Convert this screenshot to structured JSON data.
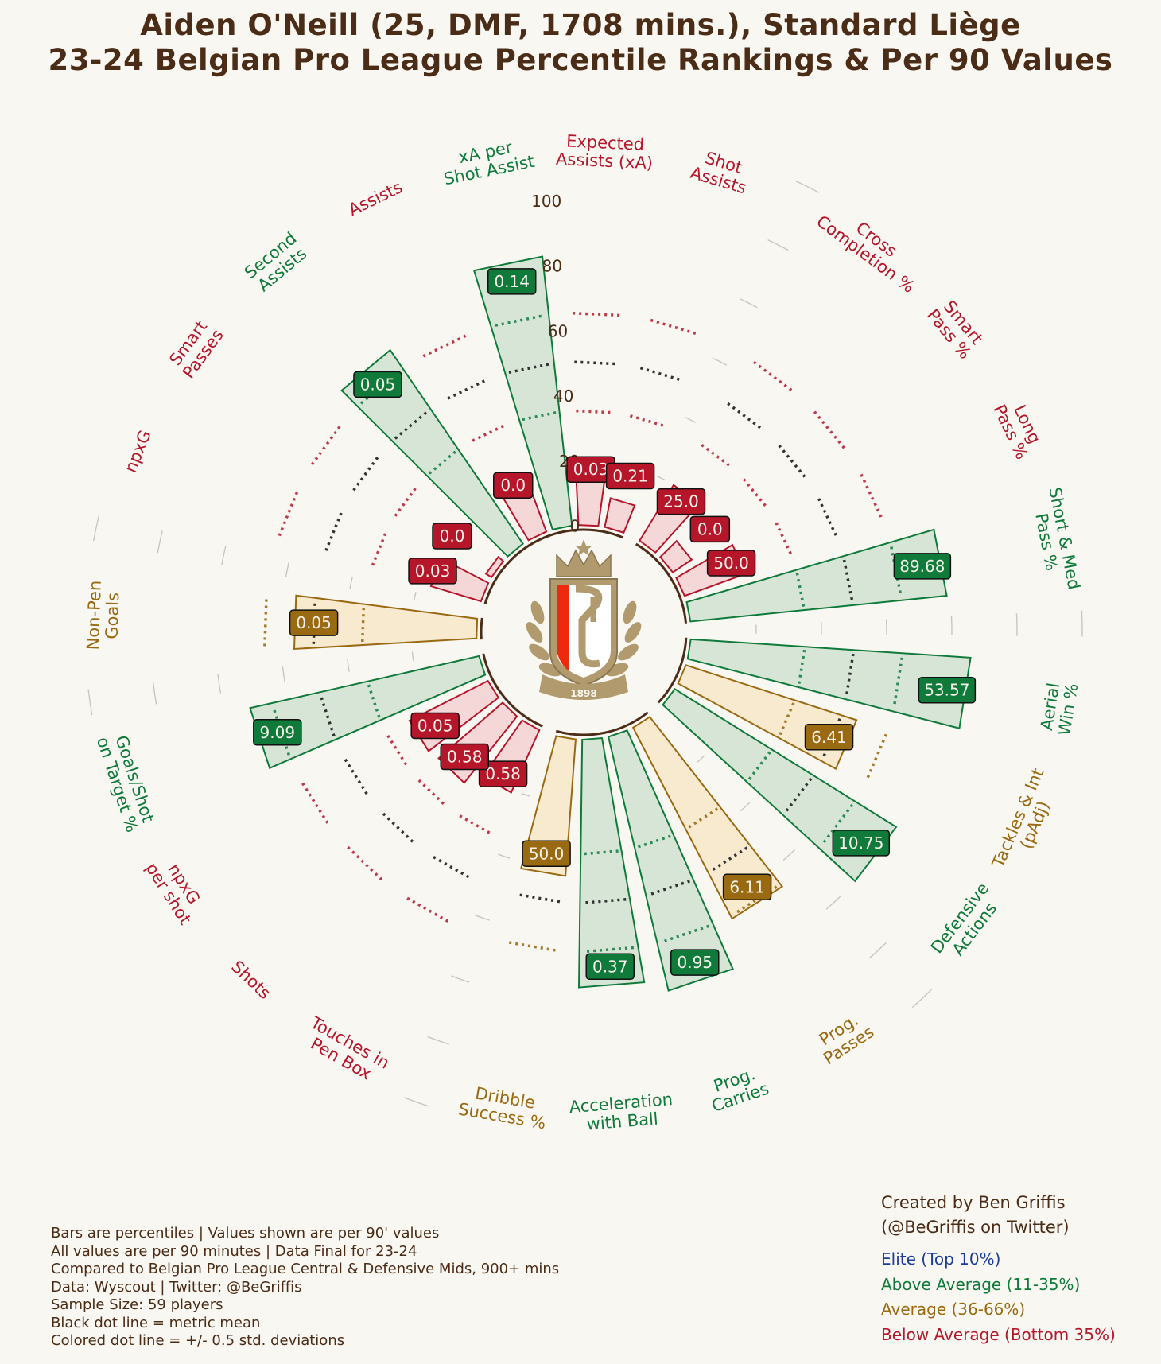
{
  "title": "Aiden O'Neill (25, DMF, 1708 mins.), Standard Liège",
  "subtitle": "23-24 Belgian Pro League Percentile Rankings & Per 90 Values",
  "notes": [
    "Bars are percentiles | Values shown are per 90' values",
    "All values are per 90 minutes | Data Final for 23-24",
    "Compared to Belgian Pro League Central & Defensive Mids, 900+ mins",
    "Data: Wyscout | Twitter: @BeGriffis",
    "Sample Size: 59 players",
    "Black dot line = metric mean",
    "Colored dot line = +/- 0.5 std. deviations"
  ],
  "credit": [
    "Created by Ben Griffis",
    "(@BeGriffis on Twitter)"
  ],
  "legend": [
    {
      "label": "Elite (Top 10%)",
      "color": "#1a3d99"
    },
    {
      "label": "Above Average (11-35%)",
      "color": "#0f7a3a"
    },
    {
      "label": "Average (36-66%)",
      "color": "#9a6a12"
    },
    {
      "label": "Below Average (Bottom 35%)",
      "color": "#b5162a"
    }
  ],
  "colors": {
    "above": "#0f7a3a",
    "average": "#9a6a12",
    "below": "#b5162a",
    "text": "#4a2c17",
    "bg": "#f9f7f2"
  },
  "logo": {
    "name": "standard-liege-crest-icon",
    "year": "1898"
  },
  "chart_data": {
    "type": "radar-bar",
    "ylim": [
      0,
      100
    ],
    "radial_ticks": [
      "0",
      "20",
      "40",
      "60",
      "80",
      "100"
    ],
    "metrics": [
      {
        "label": "Aerial\nWin %",
        "percentile": 86,
        "value": "53.57",
        "tier": "above"
      },
      {
        "label": "Tackles & Int\n(pAdj)",
        "percentile": 55,
        "value": "6.41",
        "tier": "average"
      },
      {
        "label": "Defensive\nActions",
        "percentile": 80,
        "value": "10.75",
        "tier": "above"
      },
      {
        "label": "Prog.\nPasses",
        "percentile": 66,
        "value": "6.11",
        "tier": "average"
      },
      {
        "label": "Prog.\nCarries",
        "percentile": 80,
        "value": "0.95",
        "tier": "above"
      },
      {
        "label": "Acceleration\nwith Ball",
        "percentile": 76,
        "value": "0.37",
        "tier": "above"
      },
      {
        "label": "Dribble\nSuccess %",
        "percentile": 42,
        "value": "50.0",
        "tier": "average"
      },
      {
        "label": "Touches in\nPen Box",
        "percentile": 21,
        "value": "0.58",
        "tier": "below"
      },
      {
        "label": "Shots",
        "percentile": 26,
        "value": "0.58",
        "tier": "below"
      },
      {
        "label": "npxG\nper shot",
        "percentile": 27,
        "value": "0.05",
        "tier": "below"
      },
      {
        "label": "Goals/Shot\non Target %",
        "percentile": 72,
        "value": "9.09",
        "tier": "above"
      },
      {
        "label": "Non-Pen\nGoals",
        "percentile": 56,
        "value": "0.05",
        "tier": "average"
      },
      {
        "label": "npxG",
        "percentile": 16,
        "value": "0.03",
        "tier": "below"
      },
      {
        "label": "Smart\nPasses",
        "percentile": 2,
        "value": "0.0",
        "tier": "below"
      },
      {
        "label": "Second\nAssists",
        "percentile": 72,
        "value": "0.05",
        "tier": "above"
      },
      {
        "label": "Assists",
        "percentile": 15,
        "value": "0.0",
        "tier": "below"
      },
      {
        "label": "xA per\nShot Assist",
        "percentile": 83,
        "value": "0.14",
        "tier": "above"
      },
      {
        "label": "Expected\nAssists (xA)",
        "percentile": 17,
        "value": "0.03",
        "tier": "below"
      },
      {
        "label": "Shot\nAssists",
        "percentile": 9,
        "value": "0.21",
        "tier": "below"
      },
      {
        "label": "Cross\nCompletion %",
        "percentile": 20,
        "value": "25.0",
        "tier": "below"
      },
      {
        "label": "Smart\nPass %",
        "percentile": 7,
        "value": "0.0",
        "tier": "below"
      },
      {
        "label": "Long\nPass %",
        "percentile": 20,
        "value": "50.0",
        "tier": "below"
      },
      {
        "label": "Short & Med\nPass %",
        "percentile": 79,
        "value": "89.68",
        "tier": "above"
      }
    ]
  }
}
